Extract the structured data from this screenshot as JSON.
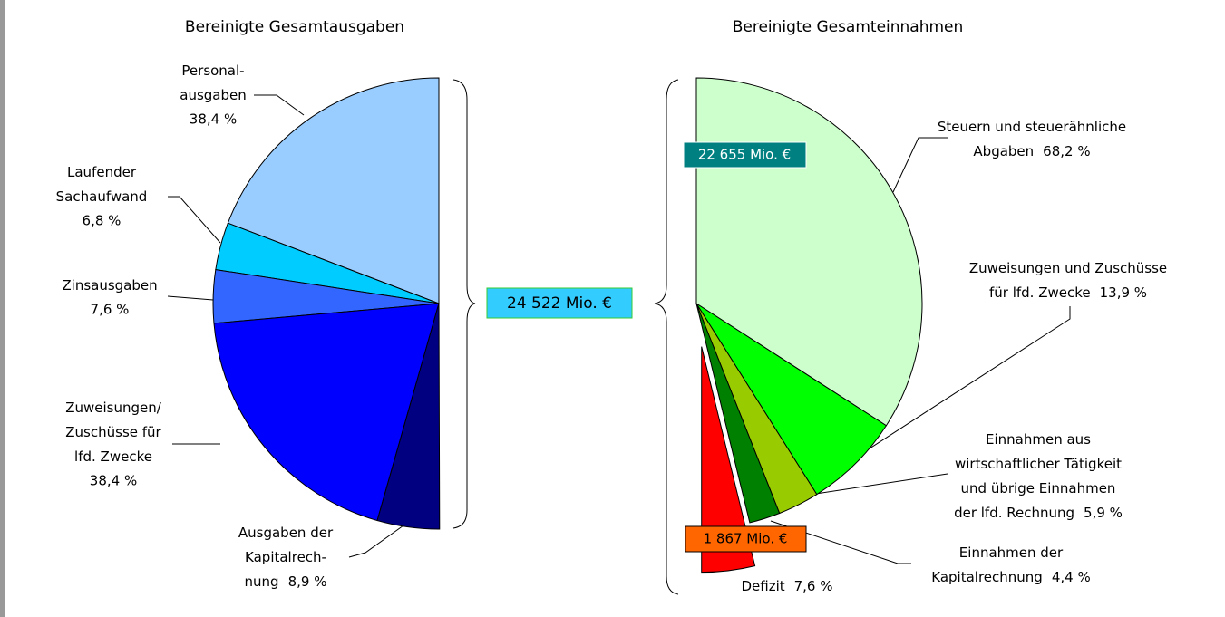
{
  "chart_data": [
    {
      "type": "half-pie-left",
      "title": "Bereinigte Gesamtausgaben",
      "categories": [
        [
          "Personal-",
          "ausgaben"
        ],
        [
          "Laufender",
          "Sachaufwand"
        ],
        [
          "Zinsausgaben"
        ],
        [
          "Zuweisungen/",
          "Zuschüsse für",
          "lfd. Zwecke"
        ],
        [
          "Ausgaben der",
          "Kapitalrech-",
          "nung"
        ]
      ],
      "values": [
        38.4,
        6.8,
        7.6,
        38.4,
        8.9
      ],
      "value_labels": [
        "38,4 %",
        "6,8 %",
        "7,6 %",
        "38,4 %",
        "8,9 %"
      ],
      "colors": [
        "#99ccff",
        "#00ccff",
        "#3366ff",
        "#0000ff",
        "#000080"
      ],
      "annotations": [
        "24 522 Mio. €"
      ]
    },
    {
      "type": "half-pie-right",
      "title": "Bereinigte Gesamteinnahmen",
      "categories": [
        [
          "Steuern und steuerähnliche",
          "Abgaben"
        ],
        [
          "Zuweisungen und Zuschüsse",
          "für lfd. Zwecke"
        ],
        [
          "Einnahmen aus",
          "wirtschaftlicher Tätigkeit",
          "und übrige Einnahmen",
          "der lfd. Rechnung"
        ],
        [
          "Einnahmen der",
          "Kapitalrechnung"
        ],
        [
          "Defizit"
        ]
      ],
      "values": [
        68.2,
        13.9,
        5.9,
        4.4,
        7.6
      ],
      "value_labels": [
        "68,2 %",
        "13,9 %",
        "5,9 %",
        "4,4 %",
        "7,6 %"
      ],
      "colors": [
        "#ccffcc",
        "#00ff00",
        "#99cc00",
        "#008000",
        "#ff0000"
      ],
      "annotations": [
        "22 655 Mio. €",
        "1 867 Mio. €"
      ]
    }
  ]
}
